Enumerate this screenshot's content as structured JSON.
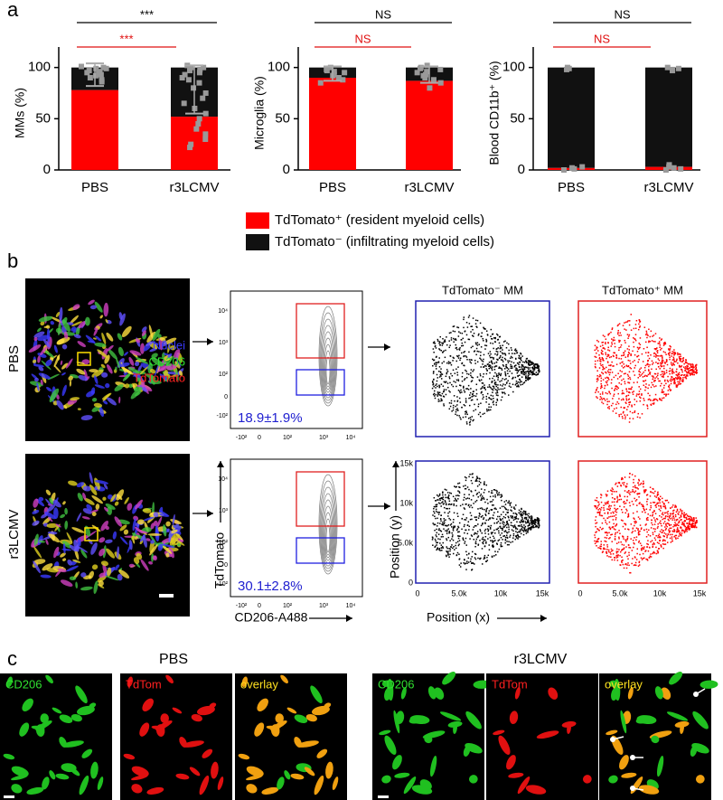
{
  "chart_data": [
    {
      "type": "bar",
      "stacked": true,
      "ylabel": "MMs (%)",
      "categories": [
        "PBS",
        "r3LCMV"
      ],
      "series": [
        {
          "name": "TdTomato⁺ (resident myeloid cells)",
          "color": "#ff0000",
          "values": [
            78,
            52
          ]
        },
        {
          "name": "TdTomato⁻ (infiltrating myeloid cells)",
          "color": "#111111",
          "values": [
            22,
            48
          ]
        }
      ],
      "points": [
        [
          101,
          99,
          97,
          95,
          93,
          92,
          90,
          88,
          86,
          99,
          96,
          94,
          100
        ],
        [
          102,
          100,
          98,
          95,
          90,
          85,
          80,
          75,
          70,
          65,
          60,
          55,
          50,
          45,
          40,
          35,
          30,
          25,
          22,
          100,
          97,
          93,
          88
        ]
      ],
      "point_color": "#999999",
      "error_bars": [
        [
          82,
          104
        ],
        [
          55,
          102
        ]
      ],
      "ylim": [
        0,
        120
      ],
      "yticks": [
        0,
        50,
        100
      ],
      "annotations": [
        {
          "text": "***",
          "color": "#000000"
        },
        {
          "text": "***",
          "color": "#e01010"
        }
      ]
    },
    {
      "type": "bar",
      "stacked": true,
      "ylabel": "Microglia (%)",
      "categories": [
        "PBS",
        "r3LCMV"
      ],
      "series": [
        {
          "name": "TdTomato⁺ (resident myeloid cells)",
          "color": "#ff0000",
          "values": [
            90,
            87
          ]
        },
        {
          "name": "TdTomato⁻ (infiltrating myeloid cells)",
          "color": "#111111",
          "values": [
            10,
            13
          ]
        }
      ],
      "points": [
        [
          100,
          97,
          95,
          93,
          90,
          88,
          85,
          98,
          96,
          92
        ],
        [
          102,
          100,
          98,
          95,
          93,
          90,
          88,
          85,
          80,
          99,
          96,
          92
        ]
      ],
      "point_color": "#999999",
      "error_bars": [
        [
          87,
          101
        ],
        [
          85,
          101
        ]
      ],
      "ylim": [
        0,
        120
      ],
      "yticks": [
        0,
        50,
        100
      ],
      "annotations": [
        {
          "text": "NS",
          "color": "#000000"
        },
        {
          "text": "NS",
          "color": "#e01010"
        }
      ]
    },
    {
      "type": "bar",
      "stacked": true,
      "ylabel": "Blood CD11b⁺ (%)",
      "categories": [
        "PBS",
        "r3LCMV"
      ],
      "series": [
        {
          "name": "TdTomato⁺ (resident myeloid cells)",
          "color": "#ff0000",
          "values": [
            2,
            3
          ]
        },
        {
          "name": "TdTomato⁻ (infiltrating myeloid cells)",
          "color": "#111111",
          "values": [
            98,
            97
          ]
        }
      ],
      "points": [
        [
          100,
          99,
          98,
          2,
          1,
          0,
          3
        ],
        [
          100,
          99,
          98,
          97,
          5,
          3,
          2,
          1,
          0
        ]
      ],
      "point_color": "#999999",
      "ylim": [
        0,
        120
      ],
      "yticks": [
        0,
        50,
        100
      ],
      "annotations": [
        {
          "text": "NS",
          "color": "#000000"
        },
        {
          "text": "NS",
          "color": "#e01010"
        }
      ]
    }
  ],
  "panel_labels": [
    "a",
    "b",
    "c"
  ],
  "panel_b": {
    "rows": [
      "PBS",
      "r3LCMV"
    ],
    "stains": [
      "Nuclei",
      "CD206",
      "TdTomato"
    ],
    "percentages": [
      "18.9±1.9%",
      "30.1±2.8%"
    ],
    "flow_y_ticks": [
      "10⁴",
      "10³",
      "10²",
      "0",
      "-10²"
    ],
    "flow_x_ticks": [
      "-10²",
      "0",
      "10²",
      "10³",
      "10⁴"
    ],
    "flow_y_label": "TdTomato",
    "flow_x_label": "CD206-A488",
    "position_titles": [
      "TdTomato⁻ MM",
      "TdTomato⁺ MM"
    ],
    "position_ticks": [
      "0",
      "5.0k",
      "10k",
      "15k"
    ],
    "position_y_label": "Position (y)",
    "position_x_label": "Position (x)"
  },
  "panel_c": {
    "groups": [
      "PBS",
      "r3LCMV"
    ],
    "channels": [
      "CD206",
      "TdTom",
      "overlay"
    ]
  }
}
